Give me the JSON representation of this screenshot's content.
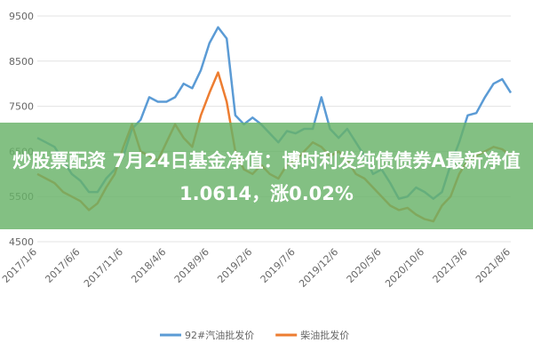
{
  "chart_data": {
    "type": "line",
    "categories": [
      "2017/1/6",
      null,
      null,
      null,
      null,
      "2017/6/6",
      null,
      null,
      null,
      null,
      "2017/11/6",
      null,
      null,
      null,
      null,
      "2018/4/6",
      null,
      null,
      null,
      null,
      "2018/9/6",
      null,
      null,
      null,
      null,
      "2019/2/6",
      null,
      null,
      null,
      null,
      "2019/7/6",
      null,
      null,
      null,
      null,
      "2019/12/6",
      null,
      null,
      null,
      null,
      "2020/5/6",
      null,
      null,
      null,
      null,
      "2020/10/6",
      null,
      null,
      null,
      null,
      "2021/3/6",
      null,
      null,
      null,
      null,
      "2021/8/6"
    ],
    "series": [
      {
        "name": "92#汽油批发价",
        "color": "#5b9bd5",
        "values": [
          6800,
          6700,
          6600,
          6300,
          6000,
          5850,
          5600,
          5600,
          5900,
          6100,
          6400,
          7000,
          7200,
          7700,
          7600,
          7600,
          7700,
          8000,
          7900,
          8300,
          8900,
          9250,
          9000,
          7300,
          7100,
          7250,
          7100,
          6900,
          6700,
          6950,
          6900,
          7000,
          7000,
          7700,
          7000,
          6800,
          7000,
          6700,
          6400,
          6000,
          6100,
          5800,
          5450,
          5500,
          5700,
          5600,
          5450,
          5600,
          6200,
          6700,
          7300,
          7350,
          7700,
          8000,
          8100,
          7800
        ]
      },
      {
        "name": "柴油批发价",
        "color": "#ed7d31",
        "values": [
          6000,
          5900,
          5800,
          5600,
          5500,
          5400,
          5200,
          5350,
          5700,
          6000,
          6600,
          7100,
          6500,
          6400,
          6300,
          6700,
          7100,
          6800,
          6600,
          7300,
          7800,
          8250,
          7600,
          6500,
          6100,
          6000,
          6200,
          6000,
          5900,
          6200,
          6300,
          6500,
          6700,
          6600,
          6400,
          6500,
          6300,
          6000,
          5900,
          5700,
          5500,
          5300,
          5200,
          5250,
          5100,
          5000,
          4950,
          5300,
          5500,
          6000,
          6300,
          6400,
          6500,
          6600,
          6550,
          6400
        ]
      }
    ],
    "ylim": [
      4500,
      9500
    ],
    "yticks": [
      4500,
      5500,
      6500,
      7500,
      8500,
      9500
    ],
    "grid": true,
    "legend": "bottom"
  },
  "overlay": {
    "text": "炒股票配资 7月24日基金净值：博时利发纯债债券A最新净值1.0614，涨0.02%"
  }
}
